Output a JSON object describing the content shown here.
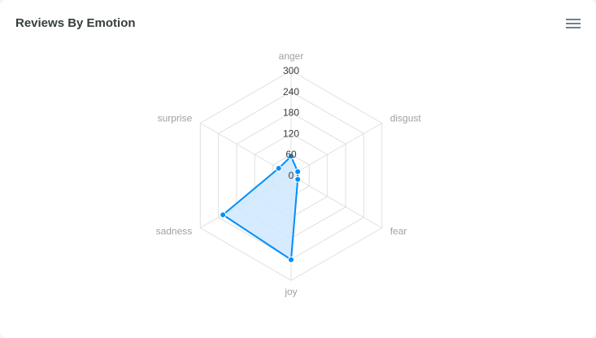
{
  "header": {
    "title": "Reviews By Emotion",
    "menu_icon": "hamburger-menu-icon"
  },
  "chart_data": {
    "type": "radar",
    "title": "Reviews By Emotion",
    "categories": [
      "anger",
      "disgust",
      "fear",
      "joy",
      "sadness",
      "surprise"
    ],
    "values": [
      55,
      22,
      22,
      241,
      225,
      41
    ],
    "axis_ticks": [
      "0",
      "60",
      "120",
      "180",
      "240",
      "300"
    ],
    "range": [
      0,
      300
    ],
    "series_color": "#008ffb",
    "fill_color": "#cfe8fd",
    "grid_color": "#e0e0e0"
  }
}
